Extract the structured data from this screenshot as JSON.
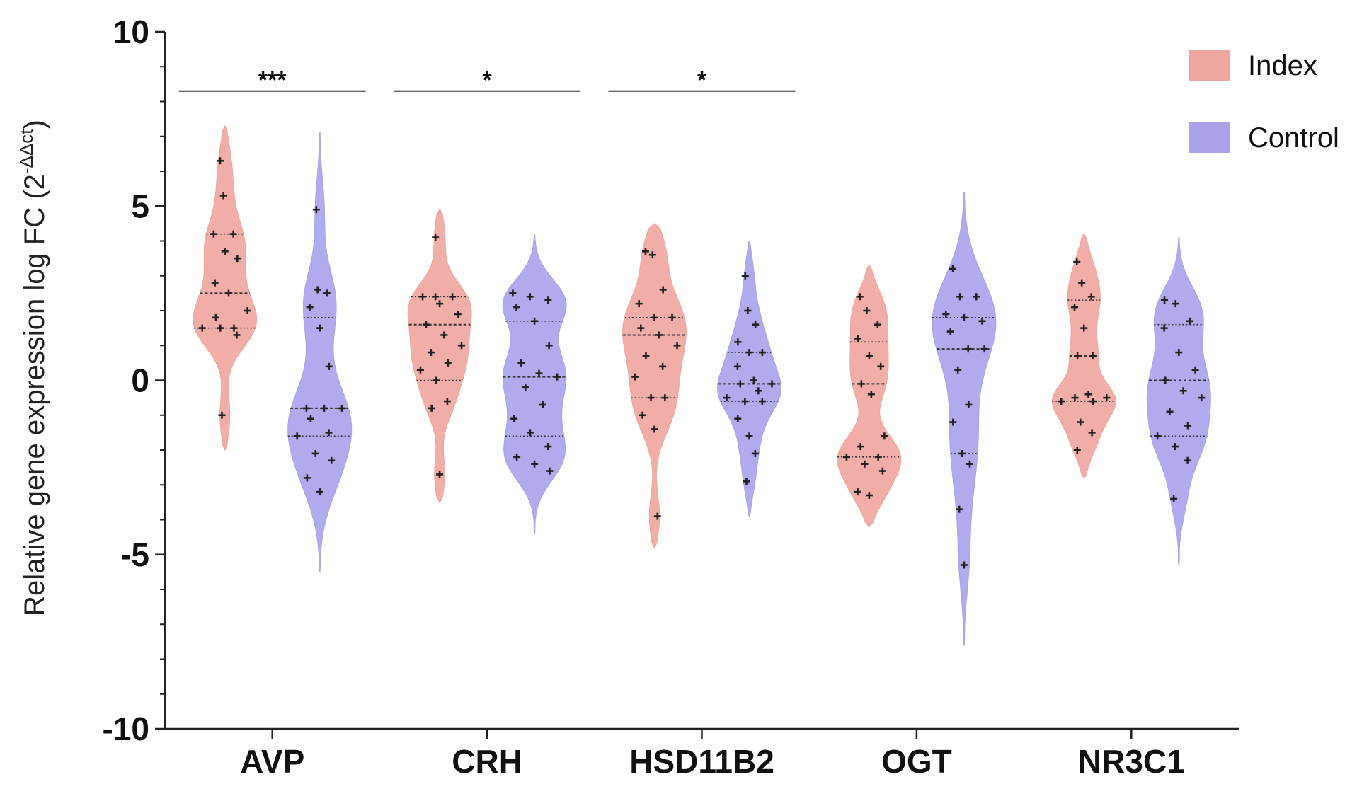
{
  "chart_data": {
    "type": "violin",
    "title": "",
    "xlabel": "",
    "ylabel": "Relative gene expression log FC (2",
    "ylabel_superscript": "-ΔΔct",
    "ylabel_close": ")",
    "ylim": [
      -10,
      10
    ],
    "yticks": [
      10,
      5,
      0,
      -5,
      -10
    ],
    "ytick_labels": [
      "10",
      "5",
      "0",
      "-5",
      "-10"
    ],
    "categories": [
      "AVP",
      "CRH",
      "HSD11B2",
      "OGT",
      "NR3C1"
    ],
    "legend": {
      "placement": "top-right",
      "entries": [
        {
          "name": "Index",
          "color": "#f0a6a0"
        },
        {
          "name": "Control",
          "color": "#aaa3ea"
        }
      ]
    },
    "significance": [
      {
        "category": "AVP",
        "label": "***"
      },
      {
        "category": "CRH",
        "label": "*"
      },
      {
        "category": "HSD11B2",
        "label": "*"
      }
    ],
    "series": [
      {
        "name": "Index",
        "color": "#f0a6a0",
        "groups": [
          {
            "category": "AVP",
            "min": -2.0,
            "max": 7.3,
            "median": 2.5,
            "q1": 1.5,
            "q3": 4.2,
            "points": [
              6.3,
              5.3,
              4.2,
              4.2,
              3.7,
              3.5,
              2.8,
              2.5,
              2.0,
              1.8,
              1.5,
              1.5,
              1.5,
              1.3,
              -1.0
            ]
          },
          {
            "category": "CRH",
            "min": -3.5,
            "max": 4.9,
            "median": 1.6,
            "q1": 0.0,
            "q3": 2.4,
            "points": [
              4.1,
              2.4,
              2.4,
              2.4,
              2.2,
              1.9,
              1.6,
              1.3,
              1.0,
              0.8,
              0.5,
              0.3,
              0.0,
              -0.6,
              -0.8,
              -2.7
            ]
          },
          {
            "category": "HSD11B2",
            "min": -4.8,
            "max": 4.5,
            "median": 1.3,
            "q1": -0.5,
            "q3": 1.8,
            "points": [
              3.7,
              3.6,
              2.6,
              2.2,
              1.8,
              1.8,
              1.5,
              1.3,
              1.0,
              0.7,
              0.4,
              0.1,
              -0.5,
              -0.5,
              -1.0,
              -1.4,
              -3.9
            ]
          },
          {
            "category": "OGT",
            "min": -4.2,
            "max": 3.3,
            "median": -0.1,
            "q1": -2.2,
            "q3": 1.1,
            "points": [
              2.4,
              2.0,
              1.6,
              1.2,
              0.7,
              0.4,
              -0.1,
              -0.4,
              -1.6,
              -1.9,
              -2.2,
              -2.2,
              -2.4,
              -2.6,
              -3.2,
              -3.3
            ]
          },
          {
            "category": "NR3C1",
            "min": -2.8,
            "max": 4.2,
            "median": 0.7,
            "q1": -0.6,
            "q3": 2.3,
            "points": [
              3.4,
              2.8,
              2.4,
              2.1,
              1.5,
              0.7,
              0.7,
              -0.4,
              -0.5,
              -0.5,
              -0.6,
              -0.6,
              -1.2,
              -1.5,
              -2.0
            ]
          }
        ]
      },
      {
        "name": "Control",
        "color": "#aaa3ea",
        "groups": [
          {
            "category": "AVP",
            "min": -5.5,
            "max": 7.1,
            "median": -0.8,
            "q1": -1.6,
            "q3": 1.8,
            "points": [
              4.9,
              2.6,
              2.5,
              2.1,
              1.5,
              0.4,
              -0.8,
              -0.8,
              -0.8,
              -1.1,
              -1.5,
              -1.6,
              -2.1,
              -2.3,
              -2.8,
              -3.2
            ]
          },
          {
            "category": "CRH",
            "min": -4.4,
            "max": 4.2,
            "median": 0.1,
            "q1": -1.6,
            "q3": 1.7,
            "points": [
              2.5,
              2.4,
              2.3,
              2.1,
              1.7,
              1.0,
              0.5,
              0.2,
              0.1,
              -0.2,
              -0.7,
              -1.1,
              -1.5,
              -1.9,
              -2.2,
              -2.4,
              -2.6
            ]
          },
          {
            "category": "HSD11B2",
            "min": -3.9,
            "max": 4.0,
            "median": -0.1,
            "q1": -0.6,
            "q3": 0.8,
            "points": [
              3.0,
              2.0,
              1.6,
              1.1,
              0.8,
              0.8,
              0.4,
              0.0,
              -0.1,
              -0.1,
              -0.3,
              -0.5,
              -0.6,
              -0.6,
              -1.1,
              -1.6,
              -2.1,
              -2.9
            ]
          },
          {
            "category": "OGT",
            "min": -7.6,
            "max": 5.4,
            "median": 0.9,
            "q1": -2.1,
            "q3": 1.8,
            "points": [
              3.2,
              2.4,
              2.4,
              1.9,
              1.8,
              1.7,
              1.4,
              0.9,
              0.9,
              0.3,
              -0.7,
              -1.2,
              -2.1,
              -2.4,
              -3.7,
              -5.3
            ]
          },
          {
            "category": "NR3C1",
            "min": -5.3,
            "max": 4.1,
            "median": 0.0,
            "q1": -1.6,
            "q3": 1.6,
            "points": [
              2.3,
              2.2,
              1.7,
              1.5,
              0.8,
              0.3,
              0.0,
              -0.3,
              -0.5,
              -0.9,
              -1.3,
              -1.6,
              -1.9,
              -2.3,
              -3.4
            ]
          }
        ]
      }
    ]
  }
}
